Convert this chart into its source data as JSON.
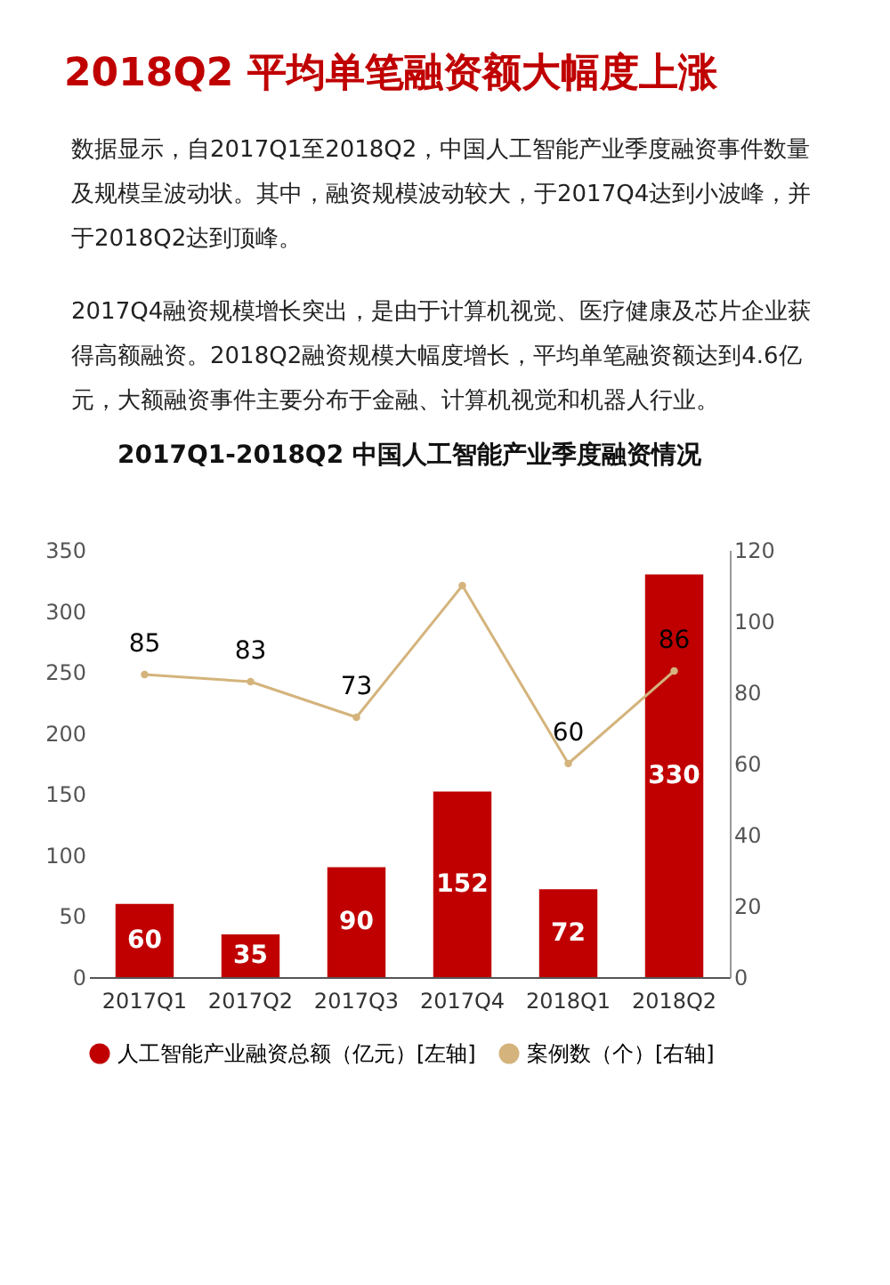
{
  "chart_data": {
    "type": "bar",
    "title": "2018Q2 平均单笔融资额大幅度上涨",
    "subtitle": "2017Q1-2018Q2 中国人工智能产业季度融资情况",
    "annotations": [
      "数据显示，自2017Q1至2018Q2，中国人工智能产业季度融资事件数量及规模呈波动状。其中，融资规模波动较大，于2017Q4达到小波峰，并于2018Q2达到顶峰。",
      "2017Q4融资规模增长突出，是由于计算机视觉、医疗健康及芯片企业获得高额融资。2018Q2融资规模大幅度增长，平均单笔融资额达到4.6亿元，大额融资事件主要分布于金融、计算机视觉和机器人行业。"
    ],
    "categories": [
      "2017Q1",
      "2017Q2",
      "2017Q3",
      "2017Q4",
      "2018Q1",
      "2018Q2"
    ],
    "series": [
      {
        "name": "人工智能产业融资总额（亿元）[左轴]",
        "color": "#c00000",
        "values": [
          60,
          35,
          90,
          152,
          72,
          330
        ],
        "value_labels": [
          "60",
          "35",
          "90",
          "152",
          "72",
          "330"
        ]
      },
      {
        "name": "案例数（个）[右轴]",
        "type": "line",
        "axis": "y2",
        "color": "#d4b47c",
        "values": [
          85,
          83,
          73,
          110,
          60,
          86
        ],
        "value_labels": [
          "85",
          "83",
          "73",
          null,
          "60",
          "86"
        ]
      }
    ],
    "ylim": [
      0,
      350
    ],
    "yticks": [
      0,
      50,
      100,
      150,
      200,
      250,
      300,
      350
    ],
    "y2lim": [
      0,
      120
    ],
    "y2ticks": [
      0,
      20,
      40,
      60,
      80,
      100,
      120
    ],
    "legend": "bottom",
    "marker": "circle",
    "grid": false
  }
}
